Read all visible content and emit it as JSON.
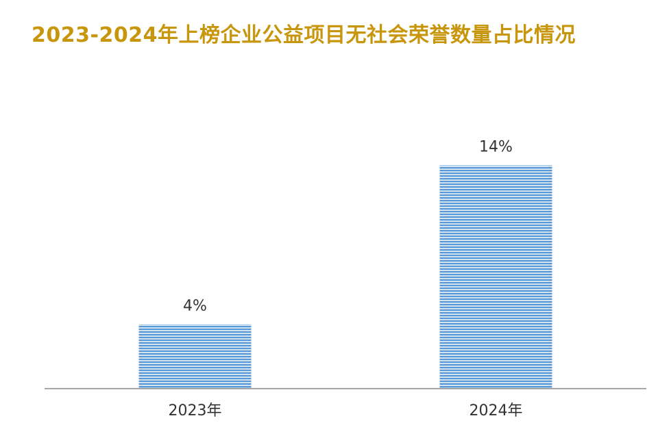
{
  "title": "2023-2024年上榜企业公益项目无社会荣誉数量占比情况",
  "colors": {
    "title": "#C8960C",
    "bar_fill": "#5B9BD5",
    "bar_stripe": "#FFFFFF",
    "axis": "#A6A6A6",
    "text": "#333333"
  },
  "chart_data": {
    "type": "bar",
    "title": "2023-2024年上榜企业公益项目无社会荣誉数量占比情况",
    "categories": [
      "2023年",
      "2024年"
    ],
    "values": [
      4,
      14
    ],
    "data_labels": [
      "4%",
      "14%"
    ],
    "unit": "%",
    "ylim": [
      0,
      17
    ],
    "grid": false,
    "legend": "none",
    "xlabel": "",
    "ylabel": ""
  }
}
